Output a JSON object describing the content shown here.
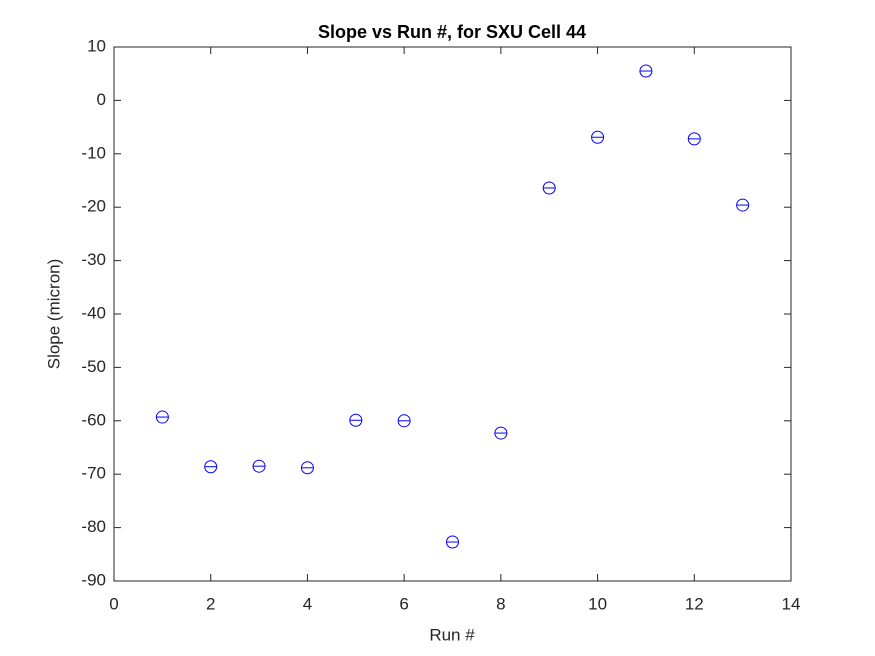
{
  "chart_data": {
    "type": "scatter",
    "title": "Slope vs Run #, for SXU Cell 44",
    "x_label": "Run #",
    "y_label": "Slope (micron)",
    "x": [
      1,
      2,
      3,
      4,
      5,
      6,
      7,
      8,
      9,
      10,
      11,
      12,
      13
    ],
    "series": [
      {
        "color": "#0000ff",
        "values": [
          -59.3,
          -68.6,
          -68.5,
          -68.8,
          -59.9,
          -60.0,
          -82.7,
          -62.3,
          -16.4,
          -6.9,
          5.5,
          -7.2,
          -19.6
        ]
      }
    ],
    "xlim": [
      0,
      14
    ],
    "xticks": [
      0,
      2,
      4,
      6,
      8,
      10,
      12,
      14
    ],
    "ylim": [
      -90,
      10
    ],
    "yticks": [
      -90,
      -80,
      -70,
      -60,
      -50,
      -40,
      -30,
      -20,
      -10,
      0,
      10
    ]
  }
}
